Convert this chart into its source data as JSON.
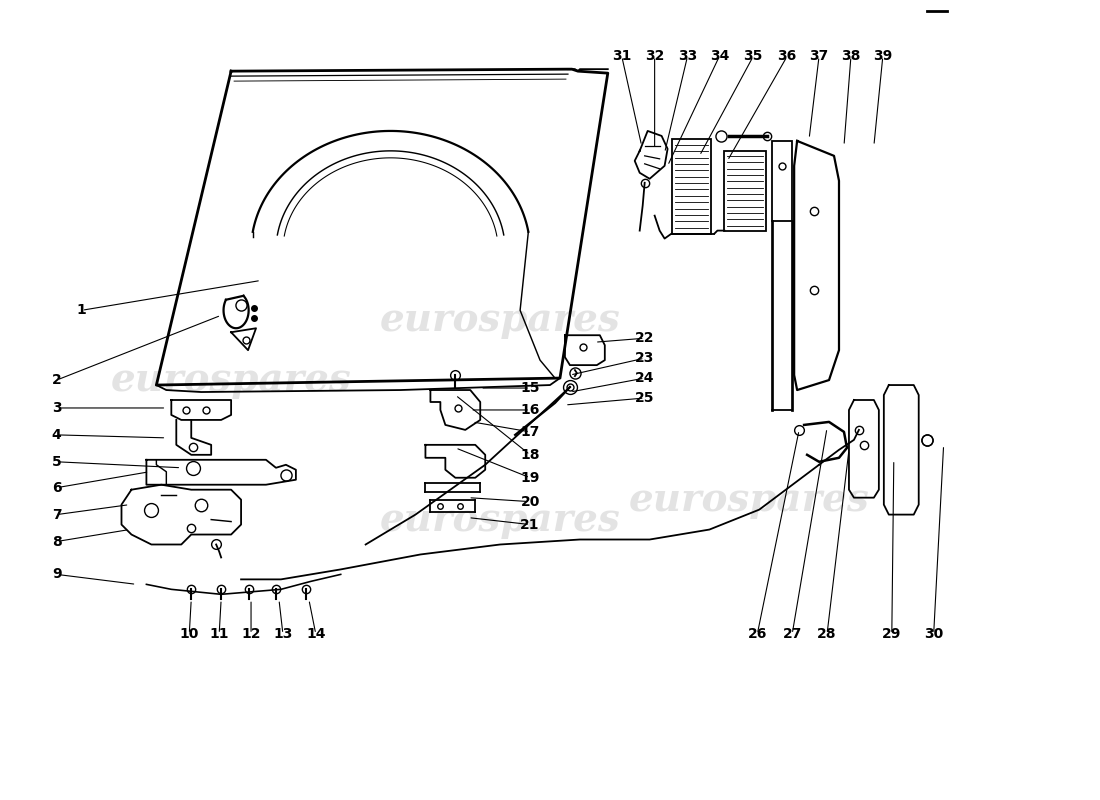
{
  "bg_color": "#ffffff",
  "line_color": "#000000",
  "watermark_text": "eurospares",
  "watermark_color": "#c8c8c8",
  "label_fontsize": 10,
  "label_fontweight": "bold"
}
